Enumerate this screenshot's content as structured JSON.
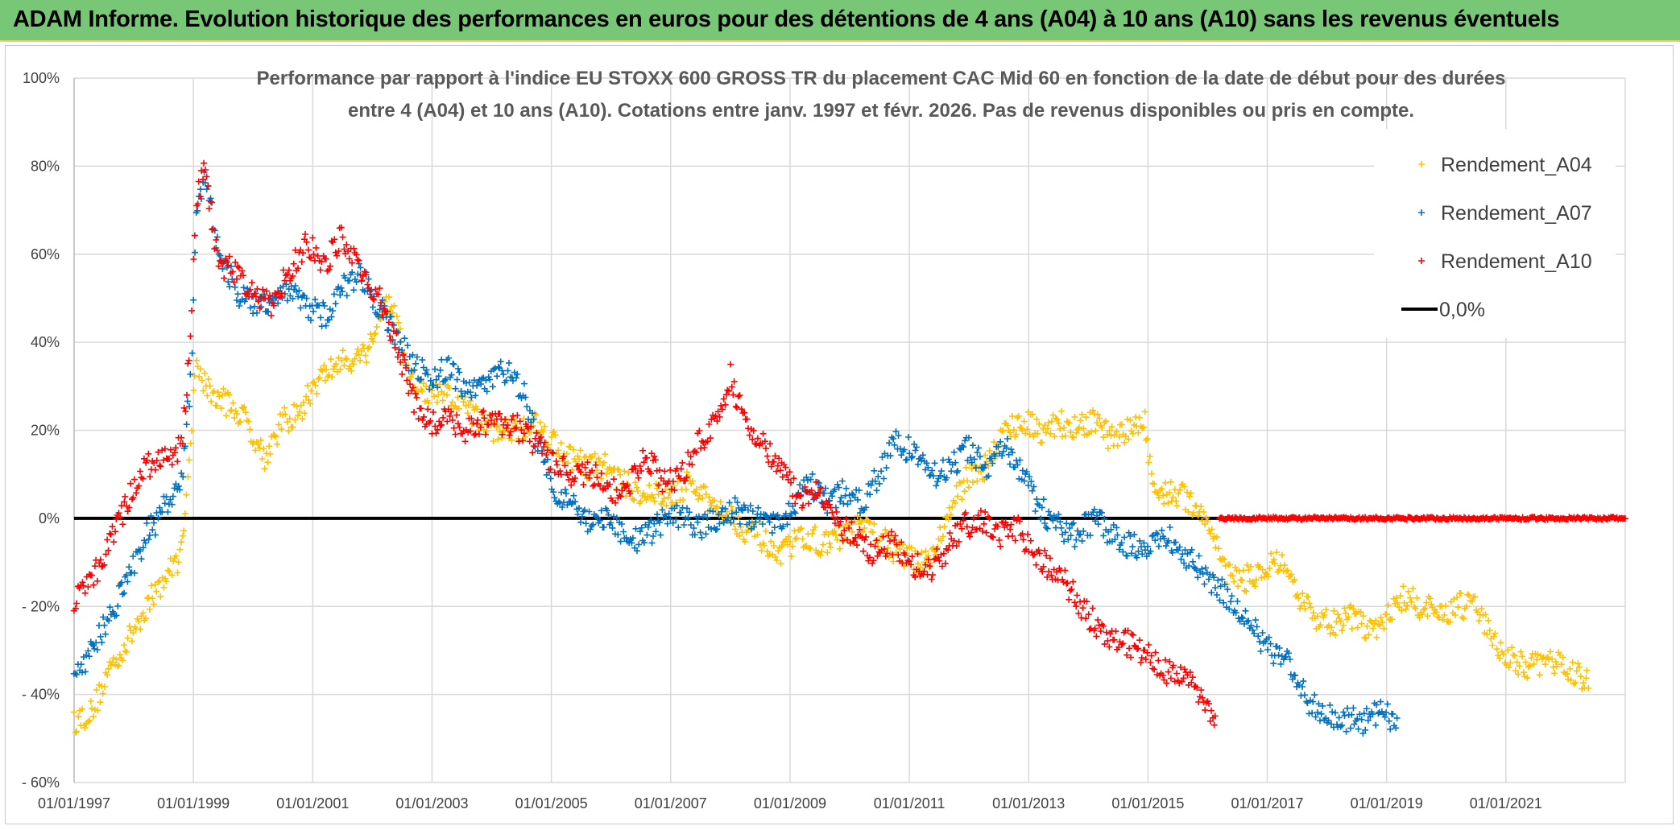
{
  "header": {
    "title": "ADAM Informe. Evolution historique des performances en euros pour des détentions de 4 ans (A04) à 10 ans (A10) sans les revenus éventuels"
  },
  "chart_data": {
    "type": "scatter",
    "subtitle_line1": "Performance par rapport à l'indice EU STOXX 600 GROSS TR  du placement CAC Mid 60 en fonction de la date de début pour des durées",
    "subtitle_line2": "entre 4 (A04) et 10 ans (A10). Cotations entre janv. 1997 et févr. 2026. Pas de revenus disponibles ou pris en compte.",
    "x_ticks": [
      "01/01/1997",
      "01/01/1999",
      "01/01/2001",
      "01/01/2003",
      "01/01/2005",
      "01/01/2007",
      "01/01/2009",
      "01/01/2011",
      "01/01/2013",
      "01/01/2015",
      "01/01/2017",
      "01/01/2019",
      "01/01/2021"
    ],
    "x_range_years": [
      1997.0,
      2023.0
    ],
    "y_ticks": [
      "100%",
      "80%",
      "60%",
      "40%",
      "20%",
      "0%",
      "- 20%",
      "- 40%",
      "- 60%"
    ],
    "y_tick_values": [
      100,
      80,
      60,
      40,
      20,
      0,
      -20,
      -40,
      -60
    ],
    "ylim": [
      -60,
      100
    ],
    "legend_position": "top-right",
    "series": [
      {
        "name": "Rendement_A04",
        "color": "#ffc000",
        "marker": "+",
        "points": [
          [
            1997.0,
            -46
          ],
          [
            1997.3,
            -44
          ],
          [
            1997.6,
            -34
          ],
          [
            1997.9,
            -28
          ],
          [
            1998.2,
            -20
          ],
          [
            1998.5,
            -14
          ],
          [
            1998.8,
            -8
          ],
          [
            1998.95,
            18
          ],
          [
            1999.05,
            35
          ],
          [
            1999.3,
            28
          ],
          [
            1999.6,
            26
          ],
          [
            1999.9,
            22
          ],
          [
            2000.2,
            14
          ],
          [
            2000.5,
            22
          ],
          [
            2000.8,
            24
          ],
          [
            2001.0,
            30
          ],
          [
            2001.3,
            34
          ],
          [
            2001.6,
            36
          ],
          [
            2001.9,
            38
          ],
          [
            2002.1,
            45
          ],
          [
            2002.3,
            50
          ],
          [
            2002.6,
            32
          ],
          [
            2002.9,
            28
          ],
          [
            2003.2,
            28
          ],
          [
            2003.5,
            26
          ],
          [
            2003.8,
            22
          ],
          [
            2004.1,
            20
          ],
          [
            2004.4,
            20
          ],
          [
            2004.7,
            22
          ],
          [
            2005.0,
            18
          ],
          [
            2005.3,
            14
          ],
          [
            2005.6,
            12
          ],
          [
            2005.9,
            12
          ],
          [
            2006.2,
            8
          ],
          [
            2006.5,
            6
          ],
          [
            2006.8,
            5
          ],
          [
            2007.0,
            5
          ],
          [
            2007.3,
            8
          ],
          [
            2007.6,
            4
          ],
          [
            2007.9,
            2
          ],
          [
            2008.2,
            -2
          ],
          [
            2008.5,
            -4
          ],
          [
            2008.8,
            -10
          ],
          [
            2009.0,
            -6
          ],
          [
            2009.3,
            -4
          ],
          [
            2009.6,
            -6
          ],
          [
            2009.9,
            -4
          ],
          [
            2010.2,
            -2
          ],
          [
            2010.5,
            -4
          ],
          [
            2010.8,
            -8
          ],
          [
            2011.1,
            -10
          ],
          [
            2011.4,
            -8
          ],
          [
            2011.7,
            2
          ],
          [
            2012.0,
            10
          ],
          [
            2012.3,
            12
          ],
          [
            2012.6,
            20
          ],
          [
            2012.9,
            22
          ],
          [
            2013.2,
            20
          ],
          [
            2013.5,
            22
          ],
          [
            2013.8,
            20
          ],
          [
            2014.1,
            22
          ],
          [
            2014.4,
            18
          ],
          [
            2014.7,
            20
          ],
          [
            2014.95,
            22
          ],
          [
            2015.1,
            6
          ],
          [
            2015.4,
            6
          ],
          [
            2015.7,
            4
          ],
          [
            2016.0,
            0
          ],
          [
            2016.3,
            -12
          ],
          [
            2016.6,
            -14
          ],
          [
            2016.9,
            -12
          ],
          [
            2017.2,
            -10
          ],
          [
            2017.5,
            -18
          ],
          [
            2017.8,
            -22
          ],
          [
            2018.1,
            -24
          ],
          [
            2018.4,
            -22
          ],
          [
            2018.7,
            -26
          ],
          [
            2019.0,
            -22
          ],
          [
            2019.3,
            -18
          ],
          [
            2019.6,
            -20
          ],
          [
            2019.9,
            -22
          ],
          [
            2020.2,
            -20
          ],
          [
            2020.5,
            -20
          ],
          [
            2020.8,
            -28
          ],
          [
            2021.1,
            -32
          ],
          [
            2021.4,
            -34
          ],
          [
            2021.7,
            -32
          ],
          [
            2022.0,
            -34
          ],
          [
            2022.3,
            -36
          ],
          [
            2022.4,
            -38
          ]
        ]
      },
      {
        "name": "Rendement_A07",
        "color": "#0070c0",
        "marker": "+",
        "points": [
          [
            1997.0,
            -35
          ],
          [
            1997.3,
            -30
          ],
          [
            1997.6,
            -22
          ],
          [
            1997.9,
            -14
          ],
          [
            1998.2,
            -4
          ],
          [
            1998.5,
            2
          ],
          [
            1998.8,
            8
          ],
          [
            1998.95,
            30
          ],
          [
            1999.05,
            70
          ],
          [
            1999.2,
            78
          ],
          [
            1999.4,
            62
          ],
          [
            1999.7,
            52
          ],
          [
            2000.0,
            48
          ],
          [
            2000.3,
            50
          ],
          [
            2000.6,
            52
          ],
          [
            2000.9,
            48
          ],
          [
            2001.2,
            46
          ],
          [
            2001.5,
            52
          ],
          [
            2001.8,
            56
          ],
          [
            2002.1,
            48
          ],
          [
            2002.4,
            42
          ],
          [
            2002.7,
            34
          ],
          [
            2003.0,
            32
          ],
          [
            2003.3,
            34
          ],
          [
            2003.6,
            28
          ],
          [
            2003.9,
            30
          ],
          [
            2004.2,
            34
          ],
          [
            2004.5,
            30
          ],
          [
            2004.8,
            16
          ],
          [
            2005.1,
            6
          ],
          [
            2005.4,
            2
          ],
          [
            2005.7,
            -2
          ],
          [
            2006.0,
            0
          ],
          [
            2006.3,
            -6
          ],
          [
            2006.6,
            -4
          ],
          [
            2006.9,
            0
          ],
          [
            2007.2,
            0
          ],
          [
            2007.5,
            -2
          ],
          [
            2007.8,
            0
          ],
          [
            2008.1,
            2
          ],
          [
            2008.4,
            0
          ],
          [
            2008.7,
            -2
          ],
          [
            2009.0,
            2
          ],
          [
            2009.3,
            8
          ],
          [
            2009.6,
            4
          ],
          [
            2009.9,
            6
          ],
          [
            2010.2,
            4
          ],
          [
            2010.5,
            10
          ],
          [
            2010.8,
            18
          ],
          [
            2011.1,
            14
          ],
          [
            2011.4,
            10
          ],
          [
            2011.7,
            12
          ],
          [
            2012.0,
            16
          ],
          [
            2012.3,
            12
          ],
          [
            2012.6,
            16
          ],
          [
            2012.9,
            10
          ],
          [
            2013.2,
            2
          ],
          [
            2013.5,
            -2
          ],
          [
            2013.8,
            -4
          ],
          [
            2014.1,
            0
          ],
          [
            2014.4,
            -4
          ],
          [
            2014.7,
            -6
          ],
          [
            2015.0,
            -6
          ],
          [
            2015.3,
            -4
          ],
          [
            2015.6,
            -8
          ],
          [
            2015.9,
            -12
          ],
          [
            2016.2,
            -16
          ],
          [
            2016.5,
            -20
          ],
          [
            2016.8,
            -26
          ],
          [
            2017.1,
            -30
          ],
          [
            2017.4,
            -34
          ],
          [
            2017.7,
            -42
          ],
          [
            2018.0,
            -44
          ],
          [
            2018.3,
            -46
          ],
          [
            2018.6,
            -46
          ],
          [
            2018.9,
            -44
          ],
          [
            2019.2,
            -46
          ]
        ]
      },
      {
        "name": "Rendement_A10",
        "color": "#ff0000",
        "marker": "+",
        "points": [
          [
            1997.0,
            -18
          ],
          [
            1997.3,
            -14
          ],
          [
            1997.6,
            -6
          ],
          [
            1997.9,
            4
          ],
          [
            1998.2,
            12
          ],
          [
            1998.5,
            14
          ],
          [
            1998.8,
            16
          ],
          [
            1998.95,
            40
          ],
          [
            1999.05,
            72
          ],
          [
            1999.2,
            80
          ],
          [
            1999.4,
            58
          ],
          [
            1999.7,
            56
          ],
          [
            2000.0,
            52
          ],
          [
            2000.3,
            48
          ],
          [
            2000.6,
            56
          ],
          [
            2000.9,
            62
          ],
          [
            2001.2,
            58
          ],
          [
            2001.5,
            64
          ],
          [
            2001.8,
            56
          ],
          [
            2002.1,
            50
          ],
          [
            2002.4,
            40
          ],
          [
            2002.7,
            26
          ],
          [
            2003.0,
            22
          ],
          [
            2003.3,
            22
          ],
          [
            2003.6,
            20
          ],
          [
            2003.9,
            22
          ],
          [
            2004.2,
            22
          ],
          [
            2004.5,
            20
          ],
          [
            2004.8,
            16
          ],
          [
            2005.1,
            12
          ],
          [
            2005.4,
            10
          ],
          [
            2005.7,
            10
          ],
          [
            2006.0,
            6
          ],
          [
            2006.3,
            8
          ],
          [
            2006.6,
            14
          ],
          [
            2006.9,
            8
          ],
          [
            2007.2,
            10
          ],
          [
            2007.5,
            18
          ],
          [
            2007.8,
            22
          ],
          [
            2008.0,
            32
          ],
          [
            2008.3,
            20
          ],
          [
            2008.6,
            16
          ],
          [
            2008.9,
            10
          ],
          [
            2009.2,
            4
          ],
          [
            2009.5,
            6
          ],
          [
            2009.8,
            -2
          ],
          [
            2010.1,
            -4
          ],
          [
            2010.4,
            -8
          ],
          [
            2010.7,
            -6
          ],
          [
            2011.0,
            -10
          ],
          [
            2011.3,
            -12
          ],
          [
            2011.6,
            -8
          ],
          [
            2011.9,
            -2
          ],
          [
            2012.2,
            0
          ],
          [
            2012.5,
            -4
          ],
          [
            2012.8,
            -2
          ],
          [
            2013.1,
            -8
          ],
          [
            2013.4,
            -12
          ],
          [
            2013.7,
            -16
          ],
          [
            2014.0,
            -22
          ],
          [
            2014.3,
            -26
          ],
          [
            2014.6,
            -28
          ],
          [
            2014.9,
            -30
          ],
          [
            2015.2,
            -34
          ],
          [
            2015.5,
            -36
          ],
          [
            2015.8,
            -38
          ],
          [
            2016.0,
            -42
          ],
          [
            2016.15,
            -47
          ]
        ]
      },
      {
        "name": "0,0%",
        "color": "#000000",
        "marker": "line",
        "value": 0
      }
    ],
    "a10_zero_segment_years": [
      2016.2,
      2023.0
    ]
  }
}
